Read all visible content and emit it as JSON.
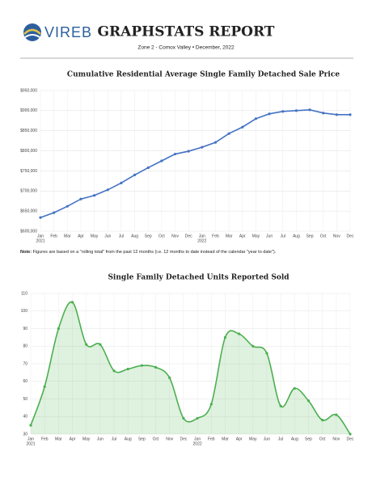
{
  "header": {
    "logo_text": "VIREB",
    "title": "GRAPHSTATS REPORT",
    "subtitle": "Zone 2 - Comox Valley • December, 2022"
  },
  "note": {
    "label": "Note:",
    "text": "Figures are based on a \"rolling total\" from the past 12 months (i.e. 12 months to date instead of the calendar \"year to date\")."
  },
  "chart_data": [
    {
      "type": "line",
      "title": "Cumulative Residential Average Single Family Detached Sale Price",
      "categories": [
        "Jan",
        "Feb",
        "Mar",
        "Apr",
        "May",
        "Jun",
        "Jul",
        "Aug",
        "Sep",
        "Oct",
        "Nov",
        "Dec",
        "Jan",
        "Feb",
        "Mar",
        "Apr",
        "May",
        "Jun",
        "Jul",
        "Aug",
        "Sep",
        "Oct",
        "Nov",
        "Dec"
      ],
      "years": [
        "2021",
        null,
        null,
        null,
        null,
        null,
        null,
        null,
        null,
        null,
        null,
        null,
        "2022",
        null,
        null,
        null,
        null,
        null,
        null,
        null,
        null,
        null,
        null,
        null
      ],
      "values": [
        634000,
        646000,
        662000,
        680000,
        689000,
        703000,
        720000,
        740000,
        758000,
        775000,
        792000,
        799000,
        809000,
        821000,
        843000,
        859000,
        880000,
        892000,
        898000,
        900000,
        902000,
        894000,
        890000,
        890000
      ],
      "color": "#4472c4",
      "smooth": false,
      "area": false,
      "ylim": [
        600000,
        950000
      ],
      "yticks": [
        {
          "value": 600000,
          "label": "$600,000"
        },
        {
          "value": 650000,
          "label": "$650,000"
        },
        {
          "value": 700000,
          "label": "$700,000"
        },
        {
          "value": 750000,
          "label": "$750,000"
        },
        {
          "value": 800000,
          "label": "$800,000"
        },
        {
          "value": 850000,
          "label": "$850,000"
        },
        {
          "value": 900000,
          "label": "$900,000"
        },
        {
          "value": 950000,
          "label": "$950,000"
        }
      ],
      "grid": true
    },
    {
      "type": "line",
      "title": "Single Family Detached Units Reported Sold",
      "categories": [
        "Jan",
        "Feb",
        "Mar",
        "Apr",
        "May",
        "Jun",
        "Jul",
        "Aug",
        "Sep",
        "Oct",
        "Nov",
        "Dec",
        "Jan",
        "Feb",
        "Mar",
        "Apr",
        "May",
        "Jun",
        "Jul",
        "Aug",
        "Sep",
        "Oct",
        "Nov",
        "Dec"
      ],
      "years": [
        "2021",
        null,
        null,
        null,
        null,
        null,
        null,
        null,
        null,
        null,
        null,
        null,
        "2022",
        null,
        null,
        null,
        null,
        null,
        null,
        null,
        null,
        null,
        null,
        null
      ],
      "values": [
        35,
        57,
        90,
        105,
        81,
        81,
        66,
        67,
        69,
        68,
        62,
        39,
        39,
        47,
        85,
        87,
        80,
        76,
        46,
        56,
        49,
        38,
        41,
        30
      ],
      "color": "#4caf50",
      "smooth": true,
      "area": true,
      "ylim": [
        30,
        110
      ],
      "yticks": [
        30,
        40,
        50,
        60,
        70,
        80,
        90,
        100,
        110
      ],
      "grid": true
    }
  ]
}
